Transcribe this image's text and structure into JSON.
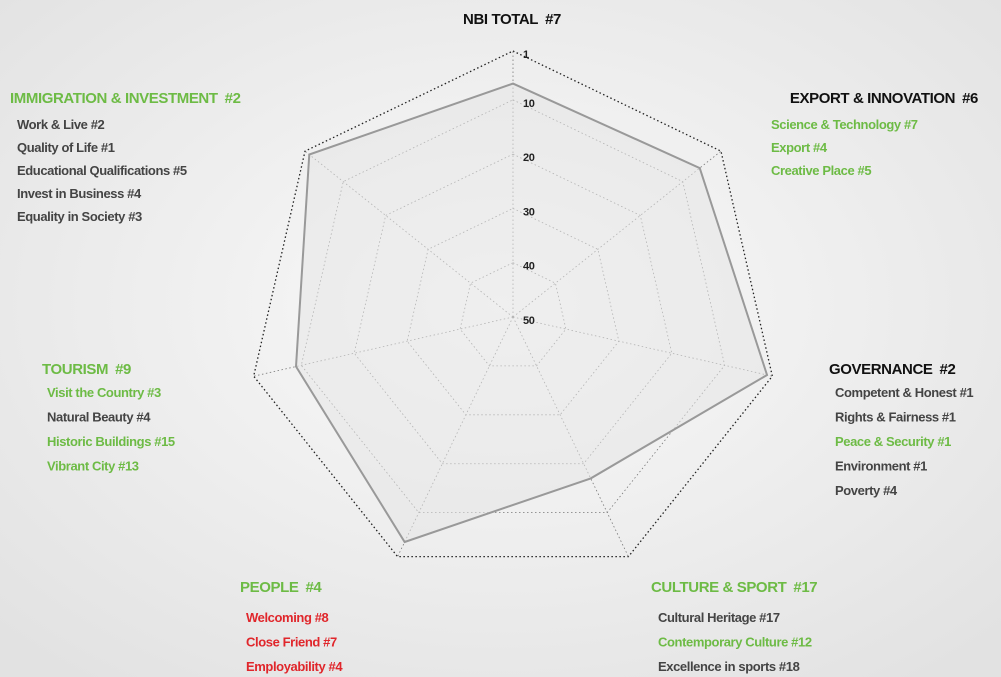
{
  "chart_data": {
    "type": "radar",
    "categories": [
      "NBI TOTAL",
      "EXPORT & INNOVATION",
      "GOVERNANCE",
      "CULTURE & SPORT",
      "PEOPLE",
      "TOURISM",
      "IMMIGRATION & INVESTMENT"
    ],
    "values": [
      7,
      6,
      2,
      17,
      4,
      9,
      2
    ],
    "value_labels": [
      "#7",
      "#6",
      "#2",
      "#17",
      "#4",
      "#9",
      "#2"
    ],
    "label_colors": [
      "#111111",
      "#111111",
      "#111111",
      "#6dbb45",
      "#6dbb45",
      "#6dbb45",
      "#6dbb45"
    ],
    "color": "#999999",
    "ylim": [
      50,
      1
    ],
    "yticks": [
      1,
      10,
      20,
      30,
      40,
      50
    ],
    "grid": true,
    "sub_items": [
      [],
      [
        {
          "text": "Science & Technology  #7",
          "color": "#6dbb45"
        },
        {
          "text": "Export  #4",
          "color": "#6dbb45"
        },
        {
          "text": "Creative Place  #5",
          "color": "#6dbb45"
        }
      ],
      [
        {
          "text": "Competent & Honest  #1",
          "color": "#444444"
        },
        {
          "text": "Rights & Fairness  #1",
          "color": "#444444"
        },
        {
          "text": "Peace & Security  #1",
          "color": "#6dbb45"
        },
        {
          "text": "Environment  #1",
          "color": "#444444"
        },
        {
          "text": "Poverty  #4",
          "color": "#444444"
        }
      ],
      [
        {
          "text": "Cultural Heritage  #17",
          "color": "#444444"
        },
        {
          "text": "Contemporary Culture  #12",
          "color": "#6dbb45"
        },
        {
          "text": "Excellence in sports  #18",
          "color": "#444444"
        }
      ],
      [
        {
          "text": "Welcoming  #8",
          "color": "#e0262b"
        },
        {
          "text": "Close Friend  #7",
          "color": "#e0262b"
        },
        {
          "text": "Employability  #4",
          "color": "#e0262b"
        }
      ],
      [
        {
          "text": "Visit the Country  #3",
          "color": "#6dbb45"
        },
        {
          "text": "Natural Beauty  #4",
          "color": "#444444"
        },
        {
          "text": "Historic Buildings  #15",
          "color": "#6dbb45"
        },
        {
          "text": "Vibrant City  #13",
          "color": "#6dbb45"
        }
      ],
      [
        {
          "text": "Work & Live  #2",
          "color": "#444444"
        },
        {
          "text": "Quality of Life  #1",
          "color": "#444444"
        },
        {
          "text": "Educational Qualifications  #5",
          "color": "#444444"
        },
        {
          "text": "Invest in Business  #4",
          "color": "#444444"
        },
        {
          "text": "Equality in Society  #3",
          "color": "#444444"
        }
      ]
    ]
  }
}
